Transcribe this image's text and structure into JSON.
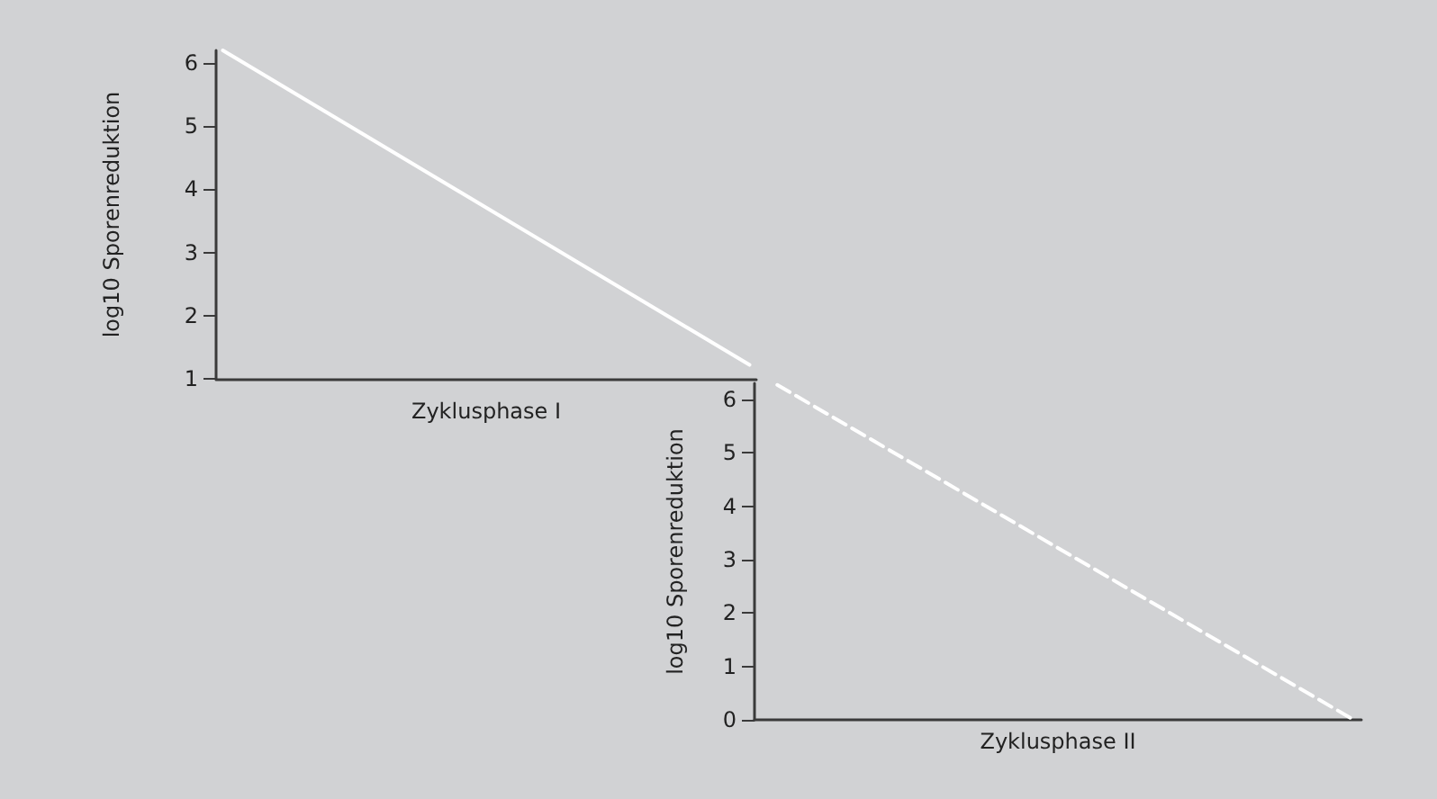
{
  "chart_data": [
    {
      "type": "line",
      "xlabel": "Zyklusphase I",
      "ylabel": "log10 Sporenreduktion",
      "categories": [
        null,
        null,
        null,
        null,
        null,
        null,
        null,
        null,
        null,
        null,
        null,
        null,
        null,
        null,
        null,
        null,
        null,
        null,
        null,
        null,
        null,
        null,
        null,
        null,
        null,
        null,
        null,
        null,
        null,
        null,
        null,
        null,
        null,
        null,
        null,
        null,
        null,
        null,
        null,
        null
      ],
      "ylim": [
        1,
        6.2
      ],
      "yticks": [
        1,
        2,
        3,
        4,
        5,
        6
      ],
      "tick_labels": "y",
      "grid": false,
      "series": [
        {
          "color": "#ffffff",
          "line_style": "solid",
          "values": [
            6.2,
            null,
            null,
            null,
            null,
            null,
            null,
            null,
            null,
            null,
            null,
            null,
            null,
            null,
            null,
            null,
            null,
            null,
            null,
            null,
            null,
            null,
            null,
            null,
            null,
            null,
            null,
            null,
            null,
            null,
            null,
            null,
            null,
            null,
            null,
            null,
            null,
            null,
            null,
            1.22
          ]
        }
      ]
    },
    {
      "type": "line",
      "xlabel": "Zyklusphase II",
      "ylabel": "log10 Sporenreduktion",
      "categories": [
        null,
        null,
        null,
        null,
        null,
        null,
        null,
        null,
        null,
        null,
        null,
        null,
        null,
        null,
        null,
        null,
        null,
        null,
        null,
        null,
        null,
        null,
        null,
        null,
        null,
        null,
        null,
        null,
        null,
        null,
        null,
        null,
        null,
        null,
        null,
        null,
        null,
        null,
        null,
        null
      ],
      "ylim": [
        0,
        6.3
      ],
      "yticks": [
        0,
        1,
        2,
        3,
        4,
        5,
        6
      ],
      "tick_labels": "y",
      "grid": false,
      "series": [
        {
          "color": "#ffffff",
          "line_style": "dashed",
          "values": [
            null,
            6.27,
            null,
            null,
            null,
            null,
            null,
            null,
            null,
            null,
            null,
            null,
            null,
            null,
            null,
            null,
            null,
            null,
            null,
            null,
            null,
            null,
            null,
            null,
            null,
            null,
            null,
            null,
            null,
            null,
            null,
            null,
            null,
            null,
            null,
            null,
            null,
            null,
            null,
            0
          ]
        }
      ]
    }
  ]
}
